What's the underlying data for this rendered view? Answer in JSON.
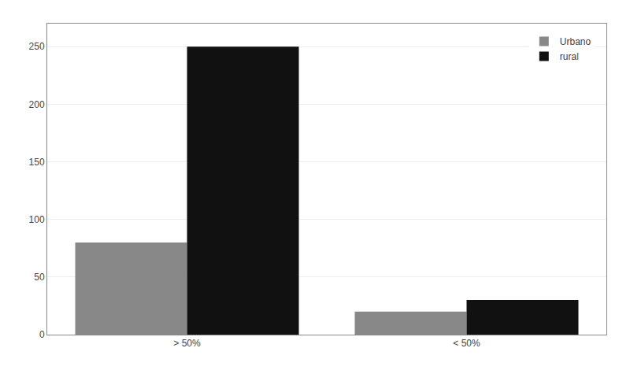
{
  "chart_data": {
    "type": "bar",
    "categories": [
      "> 50%",
      "< 50%"
    ],
    "series": [
      {
        "name": "Urbano",
        "color": "#888888",
        "values": [
          80,
          20
        ]
      },
      {
        "name": "rural",
        "color": "#111111",
        "values": [
          250,
          30
        ]
      }
    ],
    "ylim": [
      0,
      270
    ],
    "yticks": [
      0,
      50,
      100,
      150,
      200,
      250
    ],
    "grid": true,
    "legend": "upper right"
  }
}
